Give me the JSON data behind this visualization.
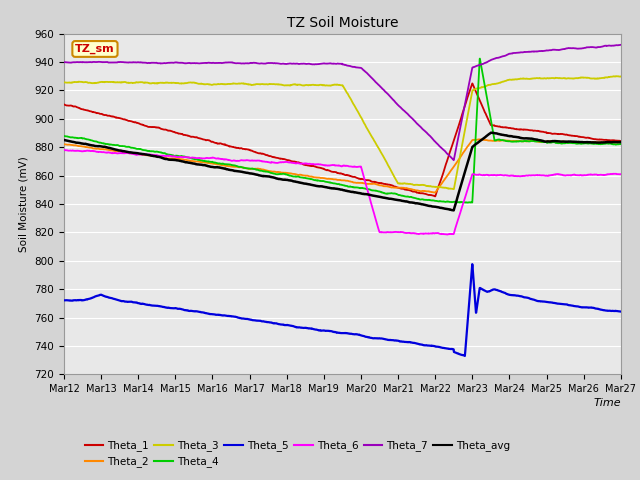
{
  "title": "TZ Soil Moisture",
  "ylabel": "Soil Moisture (mV)",
  "xlabel": "Time",
  "ylim": [
    720,
    960
  ],
  "yticks": [
    720,
    740,
    760,
    780,
    800,
    820,
    840,
    860,
    880,
    900,
    920,
    940,
    960
  ],
  "xtick_labels": [
    "Mar 12",
    "Mar 13",
    "Mar 14",
    "Mar 15",
    "Mar 16",
    "Mar 17",
    "Mar 18",
    "Mar 19",
    "Mar 20",
    "Mar 21",
    "Mar 22",
    "Mar 23",
    "Mar 24",
    "Mar 25",
    "Mar 26",
    "Mar 27"
  ],
  "bg_color": "#e8e8e8",
  "fig_bg_color": "#d4d4d4",
  "colors": {
    "Theta_1": "#cc0000",
    "Theta_2": "#ff8800",
    "Theta_3": "#cccc00",
    "Theta_4": "#00cc00",
    "Theta_5": "#0000dd",
    "Theta_6": "#ff00ff",
    "Theta_7": "#9900bb",
    "Theta_avg": "#000000"
  },
  "legend_box_facecolor": "#ffffcc",
  "legend_box_edgecolor": "#cc8800",
  "legend_box_text": "TZ_sm",
  "legend_box_text_color": "#cc0000",
  "grid_color": "#ffffff",
  "lw": 1.3
}
